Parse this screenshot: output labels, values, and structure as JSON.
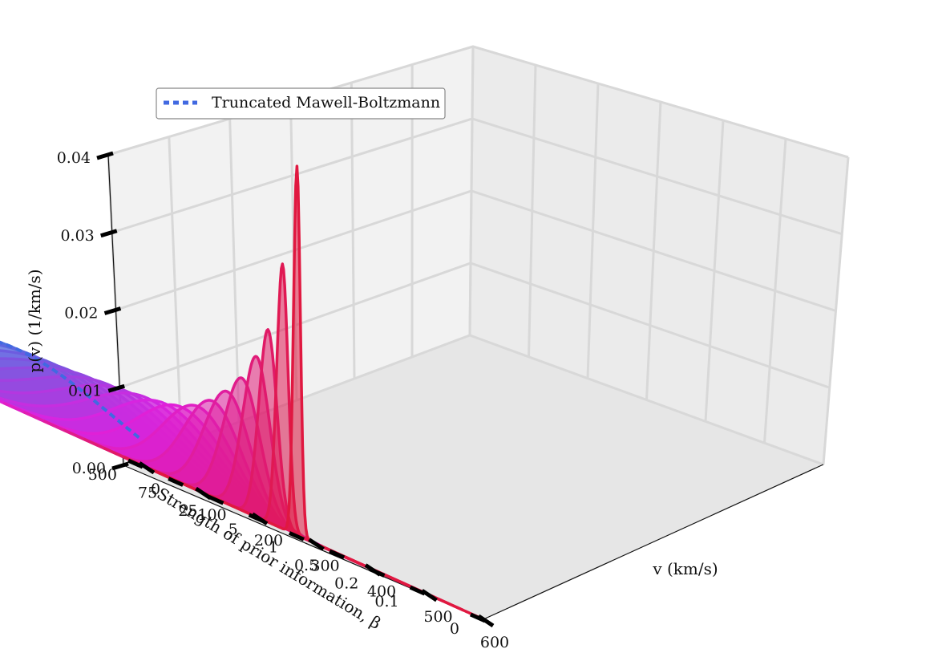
{
  "chart_data": {
    "type": "area",
    "projection": "3d",
    "title": "",
    "xlabel": "v (km/s)",
    "ylabel": "Strength of prior information, β",
    "zlabel": "p(v) (1/km/s)",
    "x_range": [
      0,
      600
    ],
    "x_ticks": [
      "0",
      "100",
      "200",
      "300",
      "400",
      "500",
      "600"
    ],
    "z_range": [
      0,
      0.04
    ],
    "z_ticks": [
      "0.00",
      "0.01",
      "0.02",
      "0.03",
      "0.04"
    ],
    "y_ticks": [
      "500",
      "75",
      "25",
      "5",
      "1",
      "0.5",
      "0.2",
      "0.1",
      "0"
    ],
    "grid": true,
    "legend": {
      "position": "top-left",
      "entries": [
        "Truncated Mawell-Boltzmann"
      ]
    },
    "colors": {
      "start": "#4a6fe0",
      "middle": "#e020e0",
      "end": "#e01840",
      "reference": "#4169e1"
    },
    "series": [
      {
        "beta_tick": "500",
        "peak_v": 380,
        "width_v": 170,
        "peak_p": 0.0075
      },
      {
        "beta_tick": "",
        "peak_v": 378,
        "width_v": 162,
        "peak_p": 0.0076
      },
      {
        "beta_tick": "75",
        "peak_v": 375,
        "width_v": 155,
        "peak_p": 0.0077
      },
      {
        "beta_tick": "",
        "peak_v": 372,
        "width_v": 148,
        "peak_p": 0.0078
      },
      {
        "beta_tick": "25",
        "peak_v": 370,
        "width_v": 140,
        "peak_p": 0.008
      },
      {
        "beta_tick": "",
        "peak_v": 368,
        "width_v": 130,
        "peak_p": 0.0082
      },
      {
        "beta_tick": "5",
        "peak_v": 365,
        "width_v": 118,
        "peak_p": 0.0084
      },
      {
        "beta_tick": "",
        "peak_v": 362,
        "width_v": 105,
        "peak_p": 0.0087
      },
      {
        "beta_tick": "1",
        "peak_v": 358,
        "width_v": 92,
        "peak_p": 0.009
      },
      {
        "beta_tick": "",
        "peak_v": 352,
        "width_v": 78,
        "peak_p": 0.0095
      },
      {
        "beta_tick": "0.5",
        "peak_v": 345,
        "width_v": 62,
        "peak_p": 0.0105
      },
      {
        "beta_tick": "",
        "peak_v": 335,
        "width_v": 50,
        "peak_p": 0.012
      },
      {
        "beta_tick": "0.2",
        "peak_v": 325,
        "width_v": 40,
        "peak_p": 0.014
      },
      {
        "beta_tick": "",
        "peak_v": 315,
        "width_v": 32,
        "peak_p": 0.0165
      },
      {
        "beta_tick": "0.1",
        "peak_v": 305,
        "width_v": 24,
        "peak_p": 0.02
      },
      {
        "beta_tick": "",
        "peak_v": 290,
        "width_v": 16,
        "peak_p": 0.024
      },
      {
        "beta_tick": "",
        "peak_v": 280,
        "width_v": 10,
        "peak_p": 0.033
      },
      {
        "beta_tick": "0",
        "peak_v": 270,
        "width_v": 6,
        "peak_p": 0.046
      }
    ],
    "reference": {
      "name": "Truncated Mawell-Boltzmann",
      "peak_v": 380,
      "width_v": 170,
      "peak_p": 0.0075
    }
  }
}
